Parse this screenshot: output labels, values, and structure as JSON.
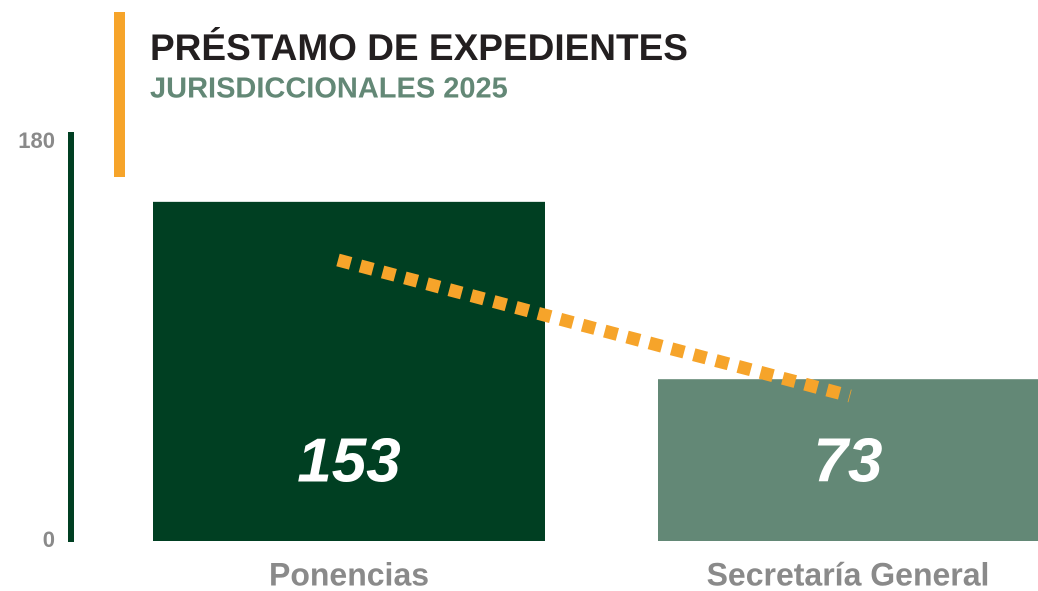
{
  "chart_data": {
    "type": "bar",
    "title": "PRÉSTAMO DE EXPEDIENTES",
    "subtitle": "JURISDICCIONALES 2025",
    "categories": [
      "Ponencias",
      "Secretaría General"
    ],
    "values": [
      153,
      73
    ],
    "colors": [
      "#003f22",
      "#638876"
    ],
    "ylim": [
      0,
      180
    ],
    "yticks": [
      0,
      180
    ],
    "grid": false
  }
}
